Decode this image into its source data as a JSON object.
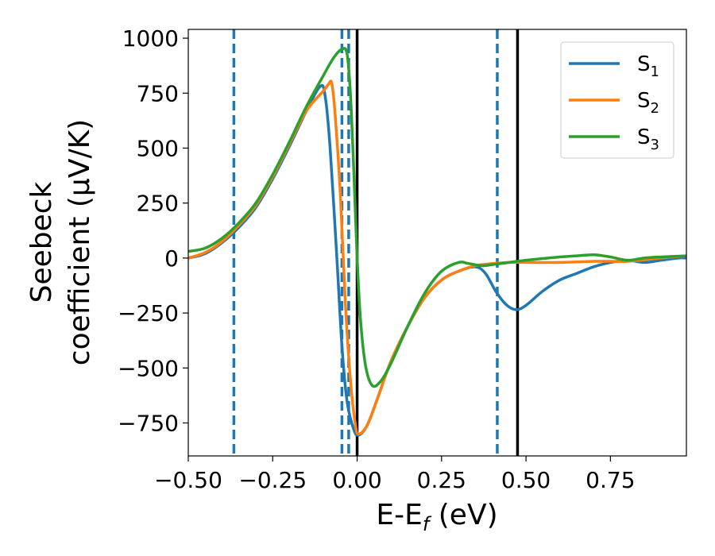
{
  "chart_data": {
    "type": "line",
    "xlabel_main": "E-E",
    "xlabel_sub": "f",
    "xlabel_unit": " (eV)",
    "ylabel_line1": "Seebeck",
    "ylabel_line2": "coefficient  (μV/K)",
    "xlim": [
      -0.5,
      0.975
    ],
    "ylim": [
      -900,
      1040
    ],
    "x_ticks": [
      -0.5,
      -0.25,
      0.0,
      0.25,
      0.5,
      0.75
    ],
    "x_tick_labels": [
      "−0.50",
      "−0.25",
      "0.00",
      "0.25",
      "0.50",
      "0.75"
    ],
    "y_ticks": [
      -750,
      -500,
      -250,
      0,
      250,
      500,
      750,
      1000
    ],
    "y_tick_labels": [
      "−750",
      "−500",
      "−250",
      "0",
      "250",
      "500",
      "750",
      "1000"
    ],
    "grid": false,
    "legend_position": "top-right",
    "series": [
      {
        "name": "S",
        "name_sub": "1",
        "color": "#1f77b4",
        "points": [
          [
            -0.5,
            0
          ],
          [
            -0.45,
            20
          ],
          [
            -0.4,
            70
          ],
          [
            -0.35,
            140
          ],
          [
            -0.3,
            230
          ],
          [
            -0.25,
            360
          ],
          [
            -0.2,
            510
          ],
          [
            -0.15,
            670
          ],
          [
            -0.11,
            780
          ],
          [
            -0.095,
            740
          ],
          [
            -0.08,
            500
          ],
          [
            -0.06,
            0
          ],
          [
            -0.045,
            -400
          ],
          [
            -0.03,
            -650
          ],
          [
            -0.01,
            -780
          ],
          [
            0.005,
            -805
          ],
          [
            0.03,
            -760
          ],
          [
            0.06,
            -640
          ],
          [
            0.1,
            -470
          ],
          [
            0.15,
            -310
          ],
          [
            0.2,
            -180
          ],
          [
            0.25,
            -100
          ],
          [
            0.3,
            -60
          ],
          [
            0.35,
            -40
          ],
          [
            0.38,
            -70
          ],
          [
            0.41,
            -150
          ],
          [
            0.44,
            -210
          ],
          [
            0.47,
            -235
          ],
          [
            0.5,
            -215
          ],
          [
            0.55,
            -150
          ],
          [
            0.6,
            -100
          ],
          [
            0.65,
            -70
          ],
          [
            0.7,
            -40
          ],
          [
            0.75,
            -20
          ],
          [
            0.8,
            -10
          ],
          [
            0.85,
            -20
          ],
          [
            0.9,
            -10
          ],
          [
            0.95,
            0
          ],
          [
            0.975,
            0
          ]
        ]
      },
      {
        "name": "S",
        "name_sub": "2",
        "color": "#ff7f0e",
        "points": [
          [
            -0.5,
            0
          ],
          [
            -0.45,
            25
          ],
          [
            -0.4,
            75
          ],
          [
            -0.35,
            150
          ],
          [
            -0.3,
            240
          ],
          [
            -0.25,
            370
          ],
          [
            -0.2,
            520
          ],
          [
            -0.15,
            670
          ],
          [
            -0.1,
            760
          ],
          [
            -0.085,
            790
          ],
          [
            -0.075,
            795
          ],
          [
            -0.065,
            650
          ],
          [
            -0.05,
            300
          ],
          [
            -0.035,
            -200
          ],
          [
            -0.02,
            -550
          ],
          [
            -0.005,
            -760
          ],
          [
            0.005,
            -800
          ],
          [
            0.03,
            -760
          ],
          [
            0.06,
            -640
          ],
          [
            0.1,
            -470
          ],
          [
            0.15,
            -310
          ],
          [
            0.2,
            -180
          ],
          [
            0.25,
            -100
          ],
          [
            0.3,
            -60
          ],
          [
            0.35,
            -35
          ],
          [
            0.4,
            -25
          ],
          [
            0.45,
            -20
          ],
          [
            0.5,
            -20
          ],
          [
            0.6,
            -20
          ],
          [
            0.7,
            -15
          ],
          [
            0.75,
            -15
          ],
          [
            0.8,
            -15
          ],
          [
            0.9,
            0
          ],
          [
            0.975,
            10
          ]
        ]
      },
      {
        "name": "S",
        "name_sub": "3",
        "color": "#2ca02c",
        "points": [
          [
            -0.5,
            30
          ],
          [
            -0.45,
            45
          ],
          [
            -0.4,
            90
          ],
          [
            -0.35,
            160
          ],
          [
            -0.3,
            250
          ],
          [
            -0.25,
            380
          ],
          [
            -0.2,
            530
          ],
          [
            -0.15,
            690
          ],
          [
            -0.1,
            830
          ],
          [
            -0.07,
            910
          ],
          [
            -0.045,
            950
          ],
          [
            -0.03,
            930
          ],
          [
            -0.02,
            750
          ],
          [
            -0.01,
            400
          ],
          [
            0.0,
            0
          ],
          [
            0.01,
            -280
          ],
          [
            0.025,
            -490
          ],
          [
            0.045,
            -580
          ],
          [
            0.07,
            -560
          ],
          [
            0.1,
            -480
          ],
          [
            0.15,
            -310
          ],
          [
            0.2,
            -160
          ],
          [
            0.25,
            -60
          ],
          [
            0.3,
            -20
          ],
          [
            0.33,
            -25
          ],
          [
            0.37,
            -35
          ],
          [
            0.4,
            -30
          ],
          [
            0.45,
            -20
          ],
          [
            0.5,
            -10
          ],
          [
            0.6,
            5
          ],
          [
            0.65,
            10
          ],
          [
            0.7,
            15
          ],
          [
            0.75,
            5
          ],
          [
            0.8,
            -10
          ],
          [
            0.85,
            0
          ],
          [
            0.9,
            5
          ],
          [
            0.975,
            10
          ]
        ]
      }
    ],
    "vlines": [
      {
        "x": -0.365,
        "style": "dashed",
        "color": "#1f77b4"
      },
      {
        "x": -0.045,
        "style": "dashed",
        "color": "#1f77b4"
      },
      {
        "x": -0.025,
        "style": "dashed",
        "color": "#1f77b4"
      },
      {
        "x": 0.415,
        "style": "dashed",
        "color": "#1f77b4"
      },
      {
        "x": 0.0,
        "style": "solid",
        "color": "#000000"
      },
      {
        "x": 0.475,
        "style": "solid",
        "color": "#000000"
      }
    ]
  }
}
